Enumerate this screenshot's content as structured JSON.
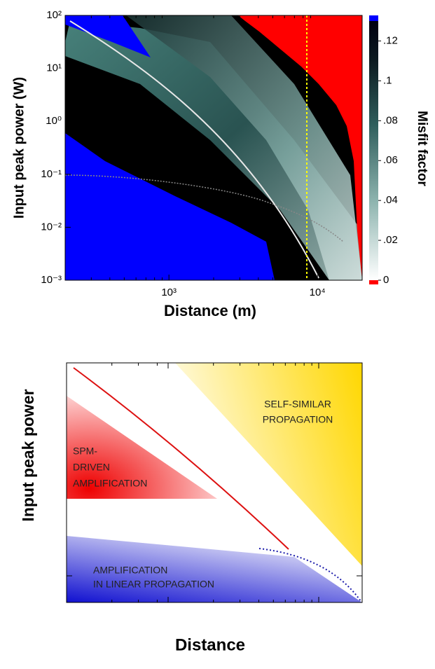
{
  "chart_data": [
    {
      "type": "heatmap",
      "xlabel": "Distance (m)",
      "ylabel": "Input peak power  (W)",
      "colorbar_label": "Misfit factor",
      "xscale": "log",
      "yscale": "log",
      "xlim": [
        200,
        20000
      ],
      "ylim": [
        0.001,
        100
      ],
      "xticks": [
        {
          "value": 1000,
          "label": "10³"
        },
        {
          "value": 10000,
          "label": "10⁴"
        }
      ],
      "yticks": [
        {
          "value": 0.001,
          "label": "10⁻³"
        },
        {
          "value": 0.01,
          "label": "10⁻²"
        },
        {
          "value": 0.1,
          "label": "10⁻¹"
        },
        {
          "value": 1,
          "label": "10⁰"
        },
        {
          "value": 10,
          "label": "10¹"
        },
        {
          "value": 100,
          "label": "10²"
        }
      ],
      "clim": [
        0,
        0.13
      ],
      "cticks": [
        0,
        {
          "value": 0.02,
          "label": ".02"
        },
        {
          "value": 0.04,
          "label": ".04"
        },
        {
          "value": 0.06,
          "label": ".06"
        },
        {
          "value": 0.08,
          "label": ".08"
        },
        {
          "value": 0.1,
          "label": ".1"
        },
        {
          "value": 0.12,
          "label": ".12"
        }
      ],
      "under_color": "#ff0000",
      "over_color": "#0000ff"
    },
    {
      "type": "schematic",
      "xlabel": "Distance",
      "ylabel": "Input peak power",
      "regions": [
        {
          "lines": [
            "SELF-SIMILAR",
            "PROPAGATION"
          ],
          "color": "#ffd700"
        },
        {
          "lines": [
            "SPM-",
            "DRIVEN",
            "AMPLIFICATION"
          ],
          "color": "#ff0000"
        },
        {
          "lines": [
            "AMPLIFICATION",
            "IN LINEAR PROPAGATION"
          ],
          "color": "#0000cc"
        }
      ]
    }
  ]
}
